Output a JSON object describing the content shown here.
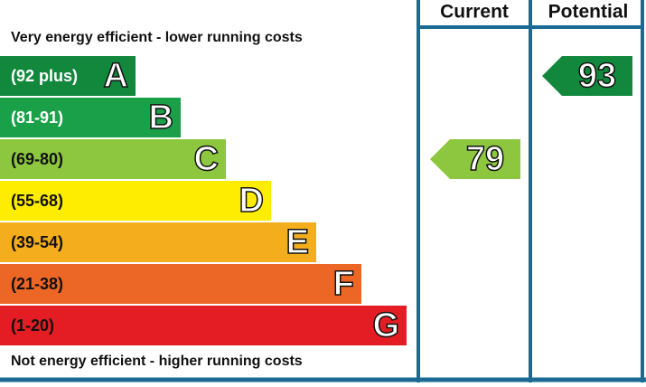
{
  "header": {
    "current": "Current",
    "potential": "Potential"
  },
  "top_note": "Very energy efficient - lower running costs",
  "bottom_note": "Not energy efficient - higher running costs",
  "bands": [
    {
      "range": "(92 plus)",
      "letter": "A",
      "color": "#12883d",
      "text_color": "#ffffff"
    },
    {
      "range": "(81-91)",
      "letter": "B",
      "color": "#1ba04a",
      "text_color": "#ffffff"
    },
    {
      "range": "(69-80)",
      "letter": "C",
      "color": "#8dc63f",
      "text_color": "#111111"
    },
    {
      "range": "(55-68)",
      "letter": "D",
      "color": "#ffed00",
      "text_color": "#111111"
    },
    {
      "range": "(39-54)",
      "letter": "E",
      "color": "#f4ad1c",
      "text_color": "#111111"
    },
    {
      "range": "(21-38)",
      "letter": "F",
      "color": "#ec6625",
      "text_color": "#111111"
    },
    {
      "range": "(1-20)",
      "letter": "G",
      "color": "#e31d23",
      "text_color": "#111111"
    }
  ],
  "current": 79,
  "potential": 93,
  "frame_color": "#1b6a94"
}
